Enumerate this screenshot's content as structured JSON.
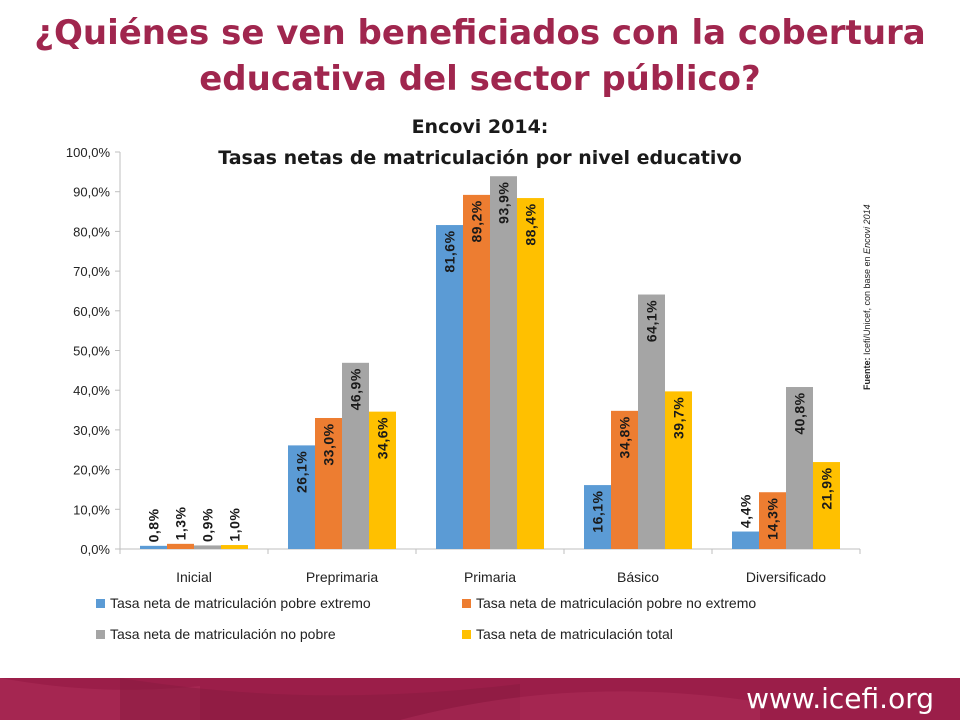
{
  "slide": {
    "title_line1": "¿Quiénes se ven beneficiados con la cobertura",
    "title_line2": "educativa del sector público?",
    "source_label": "Fuente:",
    "source_text": " Icefi/Unicef, con base en ",
    "source_italic": "Encovi 2014",
    "footer_url": "www.icefi.org"
  },
  "chart_data": {
    "type": "bar",
    "title_line1": "Encovi 2014:",
    "title_line2": "Tasas netas de matriculación por nivel educativo",
    "categories": [
      "Inicial",
      "Preprimaria",
      "Primaria",
      "Básico",
      "Diversificado"
    ],
    "series": [
      {
        "name": "Tasa neta de matriculación pobre extremo",
        "color": "#5b9bd5",
        "values": [
          0.8,
          26.1,
          81.6,
          16.1,
          4.4
        ],
        "labels": [
          "0,8%",
          "26,1%",
          "81,6%",
          "16,1%",
          "4,4%"
        ]
      },
      {
        "name": "Tasa neta de matriculación pobre no extremo",
        "color": "#ed7d31",
        "values": [
          1.3,
          33.0,
          89.2,
          34.8,
          14.3
        ],
        "labels": [
          "1,3%",
          "33,0%",
          "89,2%",
          "34,8%",
          "14,3%"
        ]
      },
      {
        "name": "Tasa neta de matriculación no pobre",
        "color": "#a5a5a5",
        "values": [
          0.9,
          46.9,
          93.9,
          64.1,
          40.8
        ],
        "labels": [
          "0,9%",
          "46,9%",
          "93,9%",
          "64,1%",
          "40,8%"
        ]
      },
      {
        "name": "Tasa neta de matriculación total",
        "color": "#ffc000",
        "values": [
          1.0,
          34.6,
          88.4,
          39.7,
          21.9
        ],
        "labels": [
          "1,0%",
          "34,6%",
          "88,4%",
          "39,7%",
          "21,9%"
        ]
      }
    ],
    "ylim": [
      0,
      100
    ],
    "yticks": [
      0,
      10,
      20,
      30,
      40,
      50,
      60,
      70,
      80,
      90,
      100
    ],
    "ytick_labels": [
      "0,0%",
      "10,0%",
      "20,0%",
      "30,0%",
      "40,0%",
      "50,0%",
      "60,0%",
      "70,0%",
      "80,0%",
      "90,0%",
      "100,0%"
    ],
    "grid": false,
    "legend": "bottom"
  }
}
